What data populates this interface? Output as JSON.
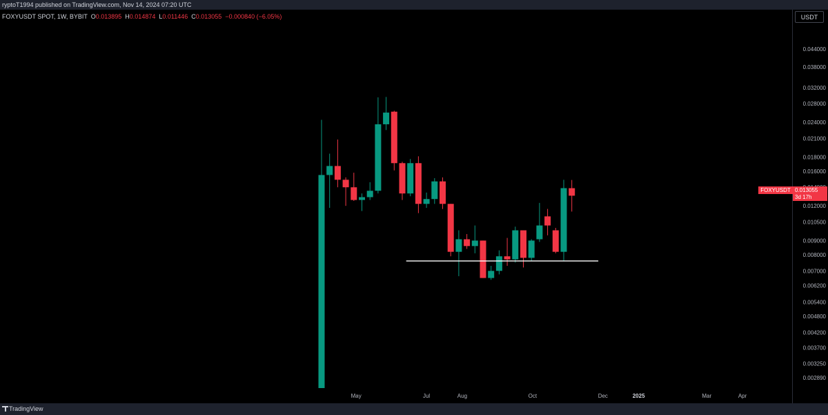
{
  "header": {
    "published_line": "ryptoT1994 published on TradingView.com, Nov 14, 2024 07:20 UTC"
  },
  "legend": {
    "symbol": "FOXYUSDT SPOT, 1W, BYBIT",
    "o_label": "O",
    "o": "0.013895",
    "h_label": "H",
    "h": "0.014874",
    "l_label": "L",
    "l": "0.011446",
    "c_label": "C",
    "c": "0.013055",
    "change": "−0.000840 (−6.05%)"
  },
  "axis": {
    "currency": "USDT"
  },
  "price_tag": {
    "symbol": "FOXYUSDT",
    "value": "0.013055",
    "countdown": "3d 17h"
  },
  "footer": {
    "brand": "TradingView"
  },
  "colors": {
    "up": "#089981",
    "down": "#f23645",
    "background": "#000000",
    "support_line": "#ffffff"
  },
  "chart_data": {
    "type": "candlestick",
    "scale": "log",
    "ylim": [
      0.00265,
      0.0535
    ],
    "y_ticks": [
      "0.044000",
      "0.038000",
      "0.032000",
      "0.028000",
      "0.024000",
      "0.021000",
      "0.018000",
      "0.016000",
      "0.014000",
      "0.012000",
      "0.010500",
      "0.009000",
      "0.008000",
      "0.007000",
      "0.006200",
      "0.005400",
      "0.004800",
      "0.004200",
      "0.003700",
      "0.003250",
      "0.002890"
    ],
    "x_labels": [
      {
        "label": "May",
        "date": "2024-05-01",
        "bold": false
      },
      {
        "label": "Jul",
        "date": "2024-07-01",
        "bold": false
      },
      {
        "label": "Aug",
        "date": "2024-08-01",
        "bold": false
      },
      {
        "label": "Oct",
        "date": "2024-10-01",
        "bold": false
      },
      {
        "label": "Dec",
        "date": "2024-12-01",
        "bold": false
      },
      {
        "label": "2025",
        "date": "2025-01-01",
        "bold": true
      },
      {
        "label": "Mar",
        "date": "2025-03-01",
        "bold": false
      },
      {
        "label": "Apr",
        "date": "2025-04-01",
        "bold": false
      }
    ],
    "support_level": {
      "price": 0.0076,
      "from": "2024-06-17",
      "to": "2024-11-18"
    },
    "candles": [
      {
        "date": "2024-04-01",
        "o": 0.00265,
        "h": 0.0245,
        "l": 0.00265,
        "c": 0.0155
      },
      {
        "date": "2024-04-08",
        "o": 0.0155,
        "h": 0.0185,
        "l": 0.0118,
        "c": 0.0167
      },
      {
        "date": "2024-04-15",
        "o": 0.0167,
        "h": 0.0208,
        "l": 0.014,
        "c": 0.0149
      },
      {
        "date": "2024-04-22",
        "o": 0.0149,
        "h": 0.0152,
        "l": 0.012,
        "c": 0.014
      },
      {
        "date": "2024-04-29",
        "o": 0.014,
        "h": 0.0158,
        "l": 0.0125,
        "c": 0.0126
      },
      {
        "date": "2024-05-06",
        "o": 0.0126,
        "h": 0.0133,
        "l": 0.0115,
        "c": 0.0129
      },
      {
        "date": "2024-05-13",
        "o": 0.0129,
        "h": 0.0146,
        "l": 0.0126,
        "c": 0.0136
      },
      {
        "date": "2024-05-20",
        "o": 0.0136,
        "h": 0.0295,
        "l": 0.0133,
        "c": 0.0236
      },
      {
        "date": "2024-05-27",
        "o": 0.0236,
        "h": 0.0296,
        "l": 0.0225,
        "c": 0.026
      },
      {
        "date": "2024-06-03",
        "o": 0.0262,
        "h": 0.0264,
        "l": 0.0161,
        "c": 0.0171
      },
      {
        "date": "2024-06-10",
        "o": 0.0171,
        "h": 0.0173,
        "l": 0.0126,
        "c": 0.0133
      },
      {
        "date": "2024-06-17",
        "o": 0.0133,
        "h": 0.0177,
        "l": 0.013,
        "c": 0.0171
      },
      {
        "date": "2024-06-24",
        "o": 0.0171,
        "h": 0.0181,
        "l": 0.0113,
        "c": 0.0122
      },
      {
        "date": "2024-07-01",
        "o": 0.0122,
        "h": 0.0134,
        "l": 0.0118,
        "c": 0.0127
      },
      {
        "date": "2024-07-08",
        "o": 0.0127,
        "h": 0.0151,
        "l": 0.0122,
        "c": 0.0147
      },
      {
        "date": "2024-07-15",
        "o": 0.0147,
        "h": 0.0152,
        "l": 0.0117,
        "c": 0.0122
      },
      {
        "date": "2024-07-22",
        "o": 0.0122,
        "h": 0.0122,
        "l": 0.0079,
        "c": 0.0082
      },
      {
        "date": "2024-07-29",
        "o": 0.0082,
        "h": 0.0098,
        "l": 0.0067,
        "c": 0.0091
      },
      {
        "date": "2024-08-05",
        "o": 0.0091,
        "h": 0.0095,
        "l": 0.0084,
        "c": 0.0086
      },
      {
        "date": "2024-08-12",
        "o": 0.0086,
        "h": 0.0102,
        "l": 0.0081,
        "c": 0.009
      },
      {
        "date": "2024-08-19",
        "o": 0.009,
        "h": 0.009,
        "l": 0.0066,
        "c": 0.0066
      },
      {
        "date": "2024-08-26",
        "o": 0.0066,
        "h": 0.0073,
        "l": 0.0065,
        "c": 0.007
      },
      {
        "date": "2024-09-02",
        "o": 0.007,
        "h": 0.0083,
        "l": 0.0068,
        "c": 0.0079
      },
      {
        "date": "2024-09-09",
        "o": 0.0079,
        "h": 0.0092,
        "l": 0.0073,
        "c": 0.0077
      },
      {
        "date": "2024-09-16",
        "o": 0.0077,
        "h": 0.0101,
        "l": 0.0075,
        "c": 0.0098
      },
      {
        "date": "2024-09-23",
        "o": 0.0098,
        "h": 0.0098,
        "l": 0.0072,
        "c": 0.0078
      },
      {
        "date": "2024-09-30",
        "o": 0.0078,
        "h": 0.0091,
        "l": 0.0076,
        "c": 0.009
      },
      {
        "date": "2024-10-07",
        "o": 0.0091,
        "h": 0.0123,
        "l": 0.0089,
        "c": 0.0102
      },
      {
        "date": "2024-10-14",
        "o": 0.011,
        "h": 0.0117,
        "l": 0.0094,
        "c": 0.0102
      },
      {
        "date": "2024-10-21",
        "o": 0.0098,
        "h": 0.01,
        "l": 0.0081,
        "c": 0.0082
      },
      {
        "date": "2024-10-28",
        "o": 0.0082,
        "h": 0.0149,
        "l": 0.0076,
        "c": 0.0139
      },
      {
        "date": "2024-11-04",
        "o": 0.013895,
        "h": 0.014874,
        "l": 0.011446,
        "c": 0.013055
      }
    ]
  }
}
